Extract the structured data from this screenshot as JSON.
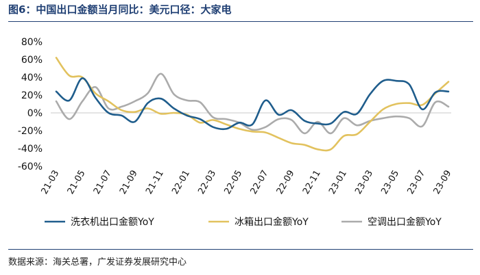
{
  "title": "图6：中国出口金额当月同比：美元口径：大家电",
  "source": "数据来源：海关总署，广发证券发展研究中心",
  "colors": {
    "title": "#1f3f73",
    "axis": "#c8c8c8"
  },
  "chart_data": {
    "type": "line",
    "title": "图6：中国出口金额当月同比：美元口径：大家电",
    "xlabel": "",
    "ylabel": "",
    "ylim": [
      -60,
      80
    ],
    "yticks": [
      80,
      60,
      40,
      20,
      0,
      -20,
      -40,
      -60
    ],
    "ytick_labels": [
      "80%",
      "60%",
      "40%",
      "20%",
      "0%",
      "-20%",
      "-40%",
      "-60%"
    ],
    "x_tick_labels": [
      "21-03",
      "21-05",
      "21-07",
      "21-09",
      "21-11",
      "22-01",
      "22-03",
      "22-05",
      "22-07",
      "22-09",
      "22-11",
      "23-01",
      "23-03",
      "23-05",
      "23-07",
      "23-09"
    ],
    "categories": [
      "21-03",
      "21-04",
      "21-05",
      "21-06",
      "21-07",
      "21-08",
      "21-09",
      "21-10",
      "21-11",
      "21-12",
      "22-01",
      "22-02",
      "22-03",
      "22-04",
      "22-05",
      "22-06",
      "22-07",
      "22-08",
      "22-09",
      "22-10",
      "22-11",
      "22-12",
      "23-01",
      "23-02",
      "23-03",
      "23-04",
      "23-05",
      "23-06",
      "23-07",
      "23-08",
      "23-09"
    ],
    "legend_position": "bottom",
    "grid": false,
    "series": [
      {
        "name": "洗衣机出口金额YoY",
        "color": "#1f5d8c",
        "values": [
          24,
          14,
          39,
          17,
          0,
          -3,
          -10,
          11,
          16,
          5,
          -3,
          -7,
          -16,
          -18,
          -11,
          -13,
          14,
          -2,
          3,
          -9,
          -12,
          -12,
          1,
          -1,
          21,
          36,
          36,
          32,
          4,
          23,
          24
        ]
      },
      {
        "name": "冰箱出口金额YoY",
        "color": "#e2c25e",
        "values": [
          62,
          42,
          40,
          22,
          13,
          3,
          1,
          5,
          -1,
          0,
          -2,
          -11,
          -8,
          -13,
          -18,
          -21,
          -22,
          -28,
          -34,
          -36,
          -41,
          -41,
          -26,
          -24,
          -10,
          4,
          10,
          11,
          9,
          22,
          35
        ]
      },
      {
        "name": "空调出口金额YoY",
        "color": "#ababab",
        "values": [
          13,
          -7,
          13,
          29,
          5,
          7,
          13,
          22,
          44,
          21,
          14,
          12,
          -5,
          -7,
          -11,
          -19,
          -16,
          -7,
          -8,
          -23,
          -10,
          -23,
          -6,
          -14,
          -9,
          -6,
          -4,
          -6,
          -15,
          12,
          7
        ]
      }
    ]
  }
}
